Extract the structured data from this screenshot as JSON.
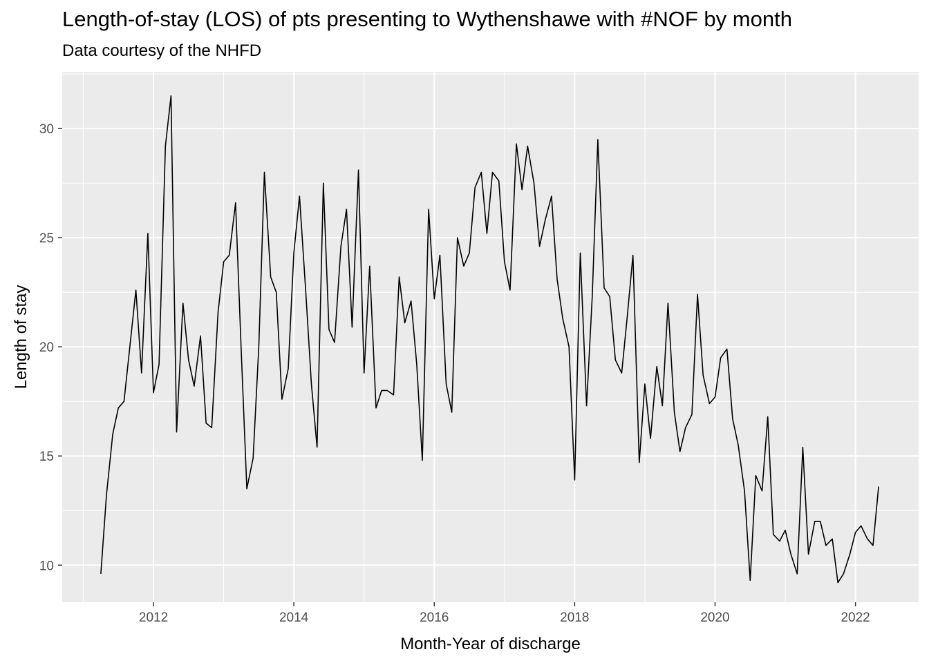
{
  "chart_data": {
    "type": "line",
    "title": "Length-of-stay (LOS) of pts presenting to Wythenshawe with #NOF by month",
    "subtitle": "Data courtesy of the NHFD",
    "xlabel": "Month-Year of discharge",
    "ylabel": "Length of stay",
    "x_range": [
      2010.7,
      2022.9
    ],
    "ylim": [
      8.3,
      32.6
    ],
    "x_ticks": [
      2012,
      2014,
      2016,
      2018,
      2020,
      2022
    ],
    "x_tick_labels": [
      "2012",
      "2014",
      "2016",
      "2018",
      "2020",
      "2022"
    ],
    "y_ticks": [
      10,
      15,
      20,
      25,
      30
    ],
    "y_tick_labels": [
      "10",
      "15",
      "20",
      "25",
      "30"
    ],
    "grid": true,
    "legend": "none",
    "series": [
      {
        "x": [
          2011.25,
          2011.33,
          2011.42,
          2011.5,
          2011.58,
          2011.67,
          2011.75,
          2011.83,
          2011.92,
          2012.0,
          2012.08,
          2012.17,
          2012.25,
          2012.33,
          2012.42,
          2012.5,
          2012.58,
          2012.67,
          2012.75,
          2012.83,
          2012.92,
          2013.0,
          2013.08,
          2013.17,
          2013.25,
          2013.33,
          2013.42,
          2013.5,
          2013.58,
          2013.67,
          2013.75,
          2013.83,
          2013.92,
          2014.0,
          2014.08,
          2014.17,
          2014.25,
          2014.33,
          2014.42,
          2014.5,
          2014.58,
          2014.67,
          2014.75,
          2014.83,
          2014.92,
          2015.0,
          2015.08,
          2015.17,
          2015.25,
          2015.33,
          2015.42,
          2015.5,
          2015.58,
          2015.67,
          2015.75,
          2015.83,
          2015.92,
          2016.0,
          2016.08,
          2016.17,
          2016.25,
          2016.33,
          2016.42,
          2016.5,
          2016.58,
          2016.67,
          2016.75,
          2016.83,
          2016.92,
          2017.0,
          2017.08,
          2017.17,
          2017.25,
          2017.33,
          2017.42,
          2017.5,
          2017.58,
          2017.67,
          2017.75,
          2017.83,
          2017.92,
          2018.0,
          2018.08,
          2018.17,
          2018.25,
          2018.33,
          2018.42,
          2018.5,
          2018.58,
          2018.67,
          2018.75,
          2018.83,
          2018.92,
          2019.0,
          2019.08,
          2019.17,
          2019.25,
          2019.33,
          2019.42,
          2019.5,
          2019.58,
          2019.67,
          2019.75,
          2019.83,
          2019.92,
          2020.0,
          2020.08,
          2020.17,
          2020.25,
          2020.33,
          2020.42,
          2020.5,
          2020.58,
          2020.67,
          2020.75,
          2020.83,
          2020.92,
          2021.0,
          2021.08,
          2021.17,
          2021.25,
          2021.33,
          2021.42,
          2021.5,
          2021.58,
          2021.67,
          2021.75,
          2021.83,
          2021.92,
          2022.0,
          2022.08,
          2022.17,
          2022.25,
          2022.33
        ],
        "y": [
          9.6,
          13.2,
          16.0,
          17.2,
          17.5,
          20.2,
          22.6,
          18.8,
          25.2,
          17.9,
          19.2,
          29.2,
          31.5,
          16.1,
          22.0,
          19.4,
          18.2,
          20.5,
          16.5,
          16.3,
          21.6,
          23.9,
          24.2,
          26.6,
          19.8,
          13.5,
          14.9,
          20.0,
          28.0,
          23.2,
          22.5,
          17.6,
          19.0,
          24.3,
          26.9,
          22.5,
          18.3,
          15.4,
          27.5,
          20.8,
          20.2,
          24.6,
          26.3,
          20.9,
          28.1,
          18.8,
          23.7,
          17.2,
          18.0,
          18.0,
          17.8,
          23.2,
          21.1,
          22.1,
          19.2,
          14.8,
          26.3,
          22.2,
          24.2,
          18.3,
          17.0,
          25.0,
          23.7,
          24.3,
          27.3,
          28.0,
          25.2,
          28.0,
          27.6,
          23.9,
          22.6,
          29.3,
          27.2,
          29.2,
          27.5,
          24.6,
          25.8,
          26.9,
          23.1,
          21.3,
          20.0,
          13.9,
          24.3,
          17.3,
          22.3,
          29.5,
          22.7,
          22.3,
          19.4,
          18.8,
          21.4,
          24.2,
          14.7,
          18.3,
          15.8,
          19.1,
          17.3,
          22.0,
          17.0,
          15.2,
          16.3,
          16.9,
          22.4,
          18.7,
          17.4,
          17.7,
          19.5,
          19.9,
          16.7,
          15.5,
          13.4,
          9.3,
          14.1,
          13.4,
          16.8,
          11.4,
          11.1,
          11.6,
          10.5,
          9.6,
          15.4,
          10.5,
          12.0,
          12.0,
          10.9,
          11.2,
          9.2,
          9.6,
          10.5,
          11.5,
          11.8,
          11.2,
          10.9,
          13.6
        ]
      }
    ]
  }
}
